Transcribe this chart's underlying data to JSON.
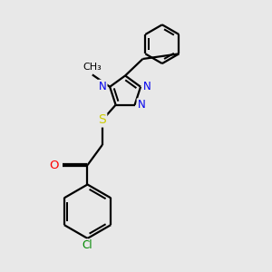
{
  "bg_color": "#e8e8e8",
  "bond_color": "#000000",
  "bond_width": 1.6,
  "atom_colors": {
    "N": "#0000ee",
    "S": "#cccc00",
    "O": "#ff0000",
    "Cl": "#008800",
    "C": "#000000"
  },
  "font_size": 8.5,
  "fig_size": [
    3.0,
    3.0
  ],
  "dpi": 100,
  "xlim": [
    0,
    10
  ],
  "ylim": [
    0,
    10
  ]
}
